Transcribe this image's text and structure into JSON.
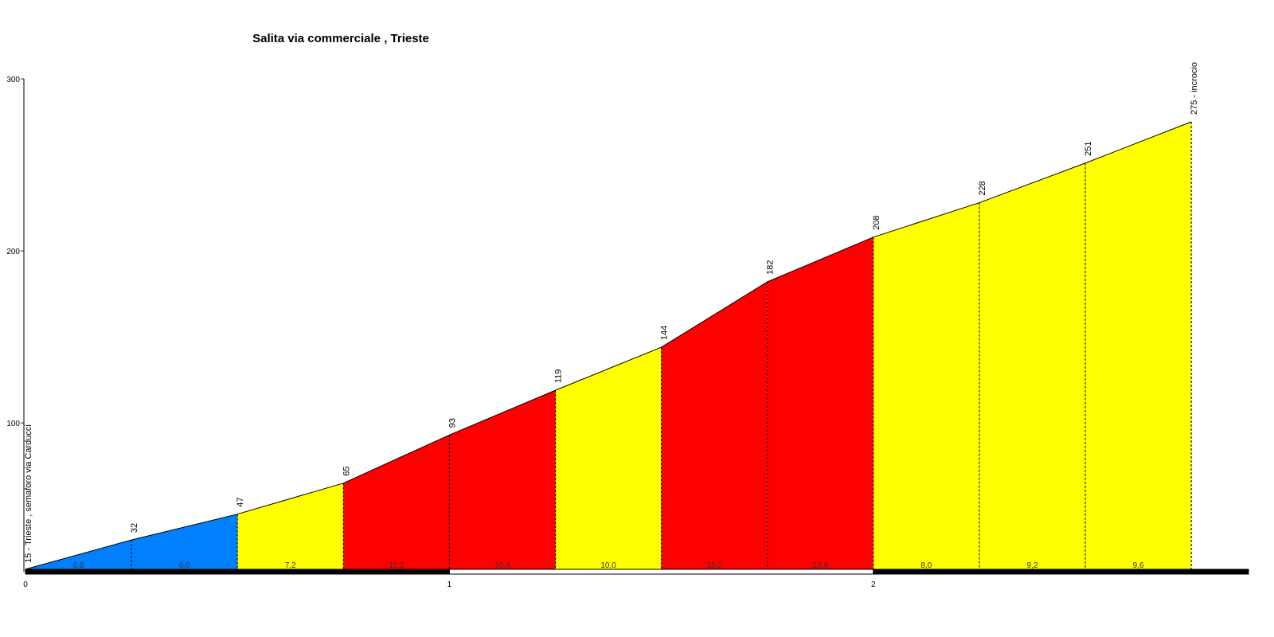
{
  "chart_data": {
    "type": "profile",
    "title": "Salita via commerciale , Trieste",
    "x": [
      0,
      0.25,
      0.5,
      0.75,
      1,
      1.25,
      1.5,
      1.75,
      2,
      2.25,
      2.5,
      2.75
    ],
    "values": [
      15,
      32,
      47,
      65,
      93,
      119,
      144,
      182,
      208,
      228,
      251,
      275
    ],
    "value_labels": [
      "15 - Trieste , semaforo via Carducci",
      "32",
      "47",
      "65",
      "93",
      "119",
      "144",
      "182",
      "208",
      "228",
      "251",
      "275 - incrocio"
    ],
    "segments": {
      "values": [
        6.8,
        6.0,
        7.2,
        11.2,
        10.4,
        10.0,
        15.2,
        10.4,
        8.0,
        9.2,
        9.6
      ],
      "value_labels": [
        "6,8",
        "6,0",
        "7,2",
        "11,2",
        "10,4",
        "10,0",
        "15,2",
        "10,4",
        "8,0",
        "9,2",
        "9,6"
      ],
      "colors": [
        "#0080ff",
        "#0080ff",
        "#ffff00",
        "#ff0000",
        "#ff0000",
        "#ffff00",
        "#ff0000",
        "#ff0000",
        "#ffff00",
        "#ffff00",
        "#ffff00"
      ]
    },
    "xlim": [
      0,
      2.885
    ],
    "ylim": [
      14,
      300
    ],
    "xticks": [
      0,
      1,
      2
    ],
    "yticks": [
      100,
      200,
      300
    ]
  }
}
